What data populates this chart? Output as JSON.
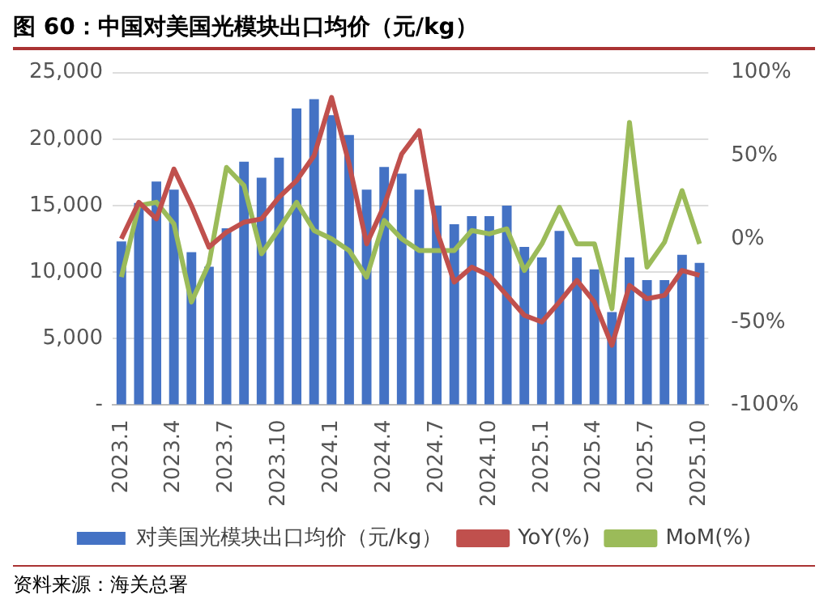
{
  "chart_data": {
    "type": "bar",
    "title": "图 60：中国对美国光模块出口均价（元/kg）",
    "categories": [
      "2023.1",
      null,
      null,
      "2023.4",
      null,
      null,
      "2023.7",
      null,
      null,
      "2023.10",
      null,
      null,
      "2024.1",
      null,
      null,
      "2024.4",
      null,
      null,
      "2024.7",
      null,
      null,
      "2024.10",
      null,
      null,
      "2025.1",
      null,
      null,
      "2025.4",
      null,
      null,
      "2025.7",
      null,
      null,
      "2025.10"
    ],
    "series": [
      {
        "name": "对美国光模块出口均价（元/kg）",
        "color": "#4472c4",
        "values": [
          12300,
          15200,
          16800,
          16200,
          11500,
          10400,
          13300,
          18300,
          17100,
          18600,
          22300,
          23000,
          21800,
          20300,
          16200,
          17900,
          17400,
          16200,
          15000,
          13600,
          14200,
          14200,
          15000,
          11900,
          11100,
          13100,
          11100,
          10200,
          7000,
          11100,
          9400,
          9400,
          11300,
          10700
        ]
      },
      {
        "name": "YoY(%)",
        "type": "line",
        "axis": "y2",
        "color": "#c0504d",
        "values": [
          0,
          22,
          12,
          42,
          20,
          -5,
          4,
          10,
          12,
          25,
          35,
          50,
          85,
          45,
          -3,
          20,
          51,
          65,
          5,
          -26,
          -17,
          -22,
          -34,
          -46,
          -50,
          -38,
          -25,
          -38,
          -64,
          -28,
          -36,
          -34,
          -19,
          -22
        ]
      },
      {
        "name": "MoM(%)",
        "type": "line",
        "axis": "y2",
        "color": "#9bbb59",
        "values": [
          -23,
          20,
          22,
          9,
          -38,
          -15,
          43,
          32,
          -9,
          6,
          22,
          5,
          0,
          -7,
          -23,
          11,
          0,
          -7,
          -7,
          -7,
          5,
          3,
          6,
          -19,
          -3,
          19,
          -3,
          -3,
          -42,
          70,
          -17,
          -2,
          29,
          -3
        ]
      }
    ],
    "ylim": [
      0,
      25000
    ],
    "yticks": [
      {
        "value": 0,
        "label": "-"
      },
      {
        "value": 5000,
        "label": "5,000"
      },
      {
        "value": 10000,
        "label": "10,000"
      },
      {
        "value": 15000,
        "label": "15,000"
      },
      {
        "value": 20000,
        "label": "20,000"
      },
      {
        "value": 25000,
        "label": "25,000"
      }
    ],
    "y2lim": [
      -100,
      100
    ],
    "y2ticks": [
      {
        "value": -100,
        "label": "-100%"
      },
      {
        "value": -50,
        "label": "-50%"
      },
      {
        "value": 0,
        "label": "0%"
      },
      {
        "value": 50,
        "label": "50%"
      },
      {
        "value": 100,
        "label": "100%"
      }
    ],
    "grid": "y",
    "legend": "bottom",
    "marker": "none",
    "line_style": "solid",
    "annotations": [
      "资料来源：海关总署"
    ]
  }
}
